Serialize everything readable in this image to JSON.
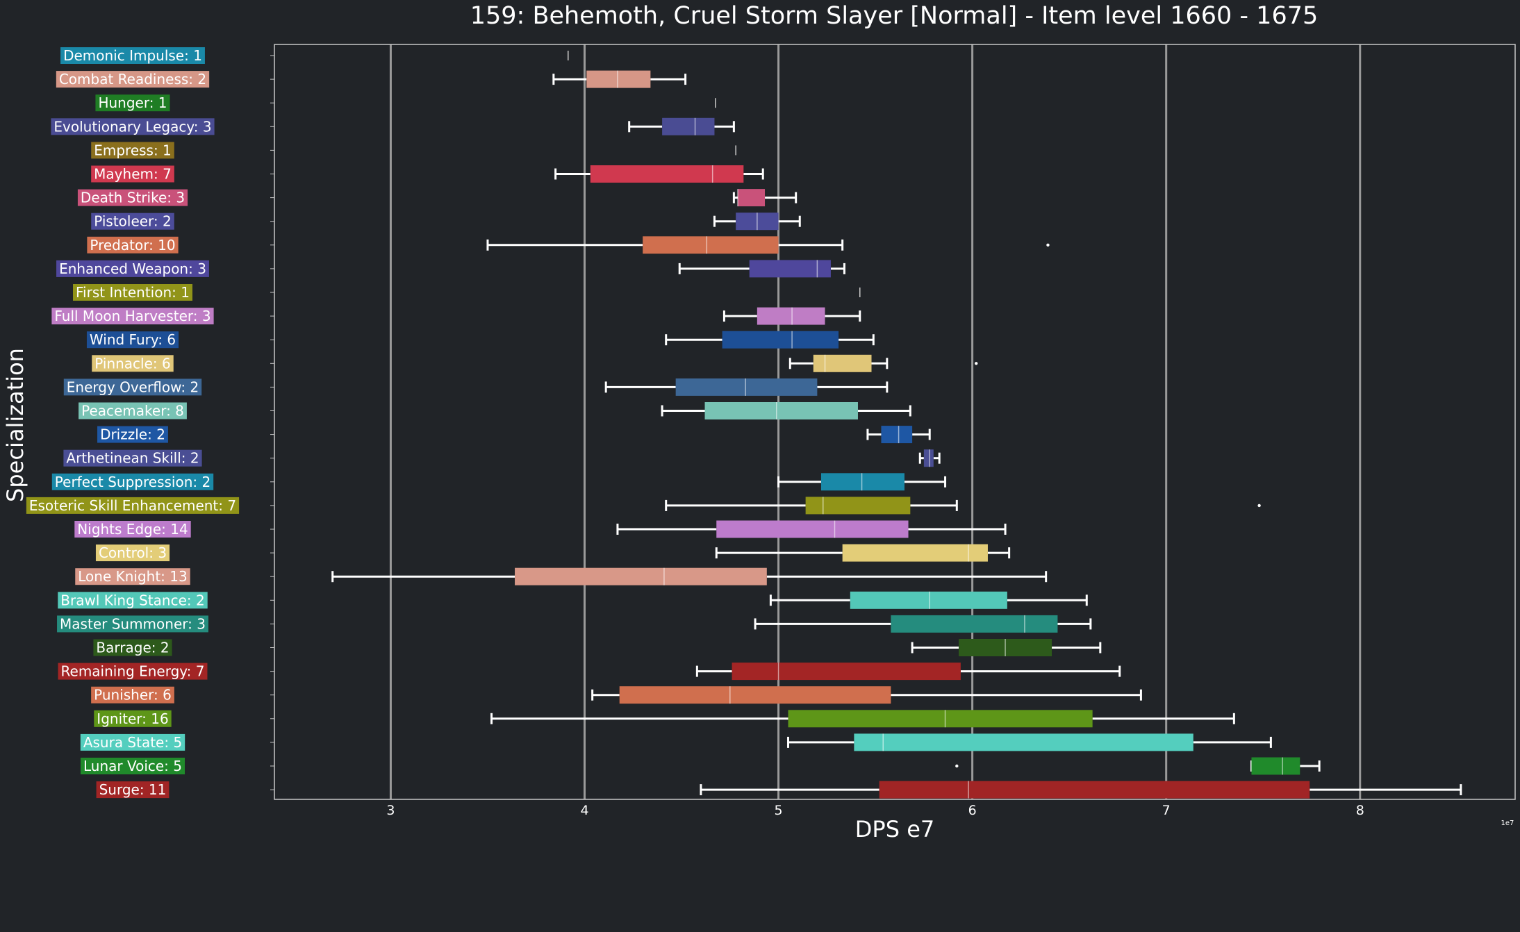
{
  "chart_data": {
    "type": "boxplot",
    "title": "159: Behemoth, Cruel Storm Slayer [Normal] - Item level 1660 - 1675",
    "xlabel": "DPS e7",
    "ylabel": "Specialization",
    "x_offset_label": "1e7",
    "xlim": [
      2.4,
      8.8
    ],
    "xticks": [
      3,
      4,
      5,
      6,
      7,
      8
    ],
    "grid": "vertical",
    "colors": {
      "background": "#212428",
      "axes_border": "#c8c8c8",
      "grid": "#9a9a9a",
      "whisker": "#ffffff"
    },
    "categories": [
      {
        "label": "Demonic Impulse: 1",
        "color": "#1a89a8",
        "min": 3.915,
        "q1": 3.915,
        "median": 3.915,
        "q3": 3.915,
        "max": 3.915,
        "outliers": []
      },
      {
        "label": "Combat Readiness: 2",
        "color": "#d69787",
        "min": 3.84,
        "q1": 4.01,
        "median": 4.17,
        "q3": 4.34,
        "max": 4.52,
        "outliers": []
      },
      {
        "label": "Hunger: 1",
        "color": "#1f7d24",
        "min": 4.675,
        "q1": 4.675,
        "median": 4.675,
        "q3": 4.675,
        "max": 4.675,
        "outliers": []
      },
      {
        "label": "Evolutionary Legacy: 3",
        "color": "#4a4c93",
        "min": 4.23,
        "q1": 4.4,
        "median": 4.57,
        "q3": 4.67,
        "max": 4.77,
        "outliers": []
      },
      {
        "label": "Empress: 1",
        "color": "#8a6f1d",
        "min": 4.78,
        "q1": 4.78,
        "median": 4.78,
        "q3": 4.78,
        "max": 4.78,
        "outliers": []
      },
      {
        "label": "Mayhem: 7",
        "color": "#d0394f",
        "min": 3.85,
        "q1": 4.03,
        "median": 4.66,
        "q3": 4.82,
        "max": 4.92,
        "outliers": []
      },
      {
        "label": "Death Strike: 3",
        "color": "#c9527a",
        "min": 4.77,
        "q1": 4.79,
        "median": 4.79,
        "q3": 4.93,
        "max": 5.09,
        "outliers": []
      },
      {
        "label": "Pistoleer: 2",
        "color": "#4c4c9a",
        "min": 4.67,
        "q1": 4.78,
        "median": 4.89,
        "q3": 5.0,
        "max": 5.11,
        "outliers": []
      },
      {
        "label": "Predator: 10",
        "color": "#d06f4e",
        "min": 3.5,
        "q1": 4.3,
        "median": 4.63,
        "q3": 5.0,
        "max": 5.33,
        "outliers": [
          6.39
        ]
      },
      {
        "label": "Enhanced Weapon: 3",
        "color": "#4f479c",
        "min": 4.49,
        "q1": 4.85,
        "median": 5.2,
        "q3": 5.27,
        "max": 5.34,
        "outliers": []
      },
      {
        "label": "First Intention: 1",
        "color": "#919419",
        "min": 5.42,
        "q1": 5.42,
        "median": 5.42,
        "q3": 5.42,
        "max": 5.42,
        "outliers": []
      },
      {
        "label": "Full Moon Harvester: 3",
        "color": "#bf7dc5",
        "min": 4.72,
        "q1": 4.89,
        "median": 5.07,
        "q3": 5.24,
        "max": 5.42,
        "outliers": []
      },
      {
        "label": "Wind Fury: 6",
        "color": "#1d4f96",
        "min": 4.42,
        "q1": 4.71,
        "median": 5.07,
        "q3": 5.31,
        "max": 5.49,
        "outliers": []
      },
      {
        "label": "Pinnacle: 6",
        "color": "#e0c678",
        "min": 5.06,
        "q1": 5.18,
        "median": 5.24,
        "q3": 5.48,
        "max": 5.56,
        "outliers": [
          6.02
        ]
      },
      {
        "label": "Energy Overflow: 2",
        "color": "#3d6796",
        "min": 4.11,
        "q1": 4.47,
        "median": 4.83,
        "q3": 5.2,
        "max": 5.56,
        "outliers": []
      },
      {
        "label": "Peacemaker: 8",
        "color": "#78c3b4",
        "min": 4.4,
        "q1": 4.62,
        "median": 4.99,
        "q3": 5.41,
        "max": 5.68,
        "outliers": []
      },
      {
        "label": "Drizzle: 2",
        "color": "#1e57a4",
        "min": 5.46,
        "q1": 5.53,
        "median": 5.62,
        "q3": 5.69,
        "max": 5.78,
        "outliers": []
      },
      {
        "label": "Arthetinean Skill: 2",
        "color": "#4a4e94",
        "min": 5.73,
        "q1": 5.75,
        "median": 5.78,
        "q3": 5.8,
        "max": 5.83,
        "outliers": []
      },
      {
        "label": "Perfect Suppression: 2",
        "color": "#1a89a8",
        "min": 5.0,
        "q1": 5.22,
        "median": 5.43,
        "q3": 5.65,
        "max": 5.86,
        "outliers": []
      },
      {
        "label": "Esoteric Skill Enhancement: 7",
        "color": "#919418",
        "min": 4.42,
        "q1": 5.14,
        "median": 5.23,
        "q3": 5.68,
        "max": 5.92,
        "outliers": [
          7.48
        ]
      },
      {
        "label": "Nights Edge: 14",
        "color": "#bd7ccc",
        "min": 4.17,
        "q1": 4.68,
        "median": 5.29,
        "q3": 5.67,
        "max": 6.17,
        "outliers": []
      },
      {
        "label": "Control: 3",
        "color": "#e3cd78",
        "min": 4.68,
        "q1": 5.33,
        "median": 5.98,
        "q3": 6.08,
        "max": 6.19,
        "outliers": []
      },
      {
        "label": "Lone Knight: 13",
        "color": "#d89888",
        "min": 2.7,
        "q1": 3.64,
        "median": 4.41,
        "q3": 4.94,
        "max": 6.38,
        "outliers": []
      },
      {
        "label": "Brawl King Stance: 2",
        "color": "#53c8b8",
        "min": 4.96,
        "q1": 5.37,
        "median": 5.78,
        "q3": 6.18,
        "max": 6.59,
        "outliers": []
      },
      {
        "label": "Master Summoner: 3",
        "color": "#258c7e",
        "min": 4.88,
        "q1": 5.58,
        "median": 6.27,
        "q3": 6.44,
        "max": 6.61,
        "outliers": []
      },
      {
        "label": "Barrage: 2",
        "color": "#2d5a1b",
        "min": 5.69,
        "q1": 5.93,
        "median": 6.17,
        "q3": 6.41,
        "max": 6.66,
        "outliers": []
      },
      {
        "label": "Remaining Energy: 7",
        "color": "#a32525",
        "min": 4.58,
        "q1": 4.76,
        "median": 5.0,
        "q3": 5.94,
        "max": 6.76,
        "outliers": []
      },
      {
        "label": "Punisher: 6",
        "color": "#d06f4e",
        "min": 4.04,
        "q1": 4.18,
        "median": 4.75,
        "q3": 5.58,
        "max": 6.87,
        "outliers": []
      },
      {
        "label": "Igniter: 16",
        "color": "#5e9618",
        "min": 3.52,
        "q1": 5.05,
        "median": 5.86,
        "q3": 6.62,
        "max": 7.35,
        "outliers": []
      },
      {
        "label": "Asura State: 5",
        "color": "#54cebe",
        "min": 5.05,
        "q1": 5.39,
        "median": 5.54,
        "q3": 7.14,
        "max": 7.54,
        "outliers": []
      },
      {
        "label": "Lunar Voice: 5",
        "color": "#208a2b",
        "min": 7.44,
        "q1": 7.44,
        "median": 7.6,
        "q3": 7.69,
        "max": 7.79,
        "outliers": [
          5.92
        ]
      },
      {
        "label": "Surge: 11",
        "color": "#a12525",
        "min": 4.6,
        "q1": 5.52,
        "median": 5.98,
        "q3": 7.74,
        "max": 8.52,
        "outliers": []
      }
    ]
  }
}
